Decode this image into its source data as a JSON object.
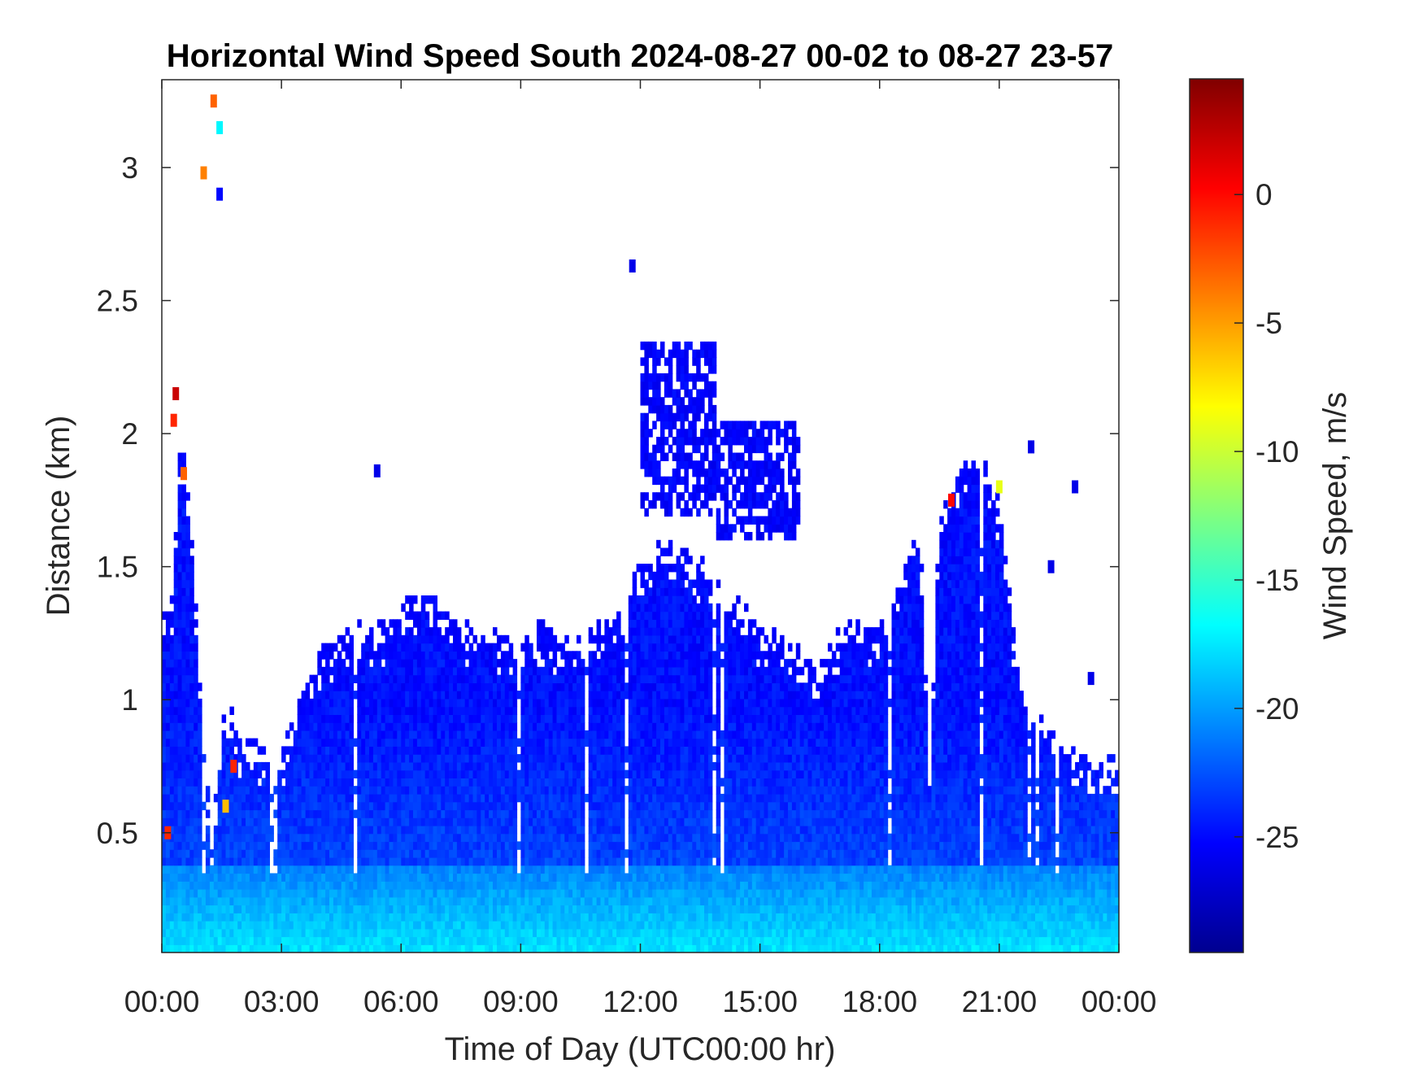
{
  "chart_data": {
    "type": "heatmap",
    "title": "Horizontal Wind Speed South 2024-08-27 00-02 to 08-27 23-57",
    "xlabel": "Time of Day (UTC00:00 hr)",
    "ylabel": "Distance (km)",
    "colorbar_label": "Wind Speed, m/s",
    "x_range_hours": [
      0,
      24
    ],
    "x_ticks": [
      0,
      3,
      6,
      9,
      12,
      15,
      18,
      21,
      24
    ],
    "x_tick_labels": [
      "00:00",
      "03:00",
      "06:00",
      "09:00",
      "12:00",
      "15:00",
      "18:00",
      "21:00",
      "00:00"
    ],
    "y_range_km": [
      0.05,
      3.33
    ],
    "y_ticks": [
      0.5,
      1,
      1.5,
      2,
      2.5,
      3
    ],
    "y_tick_labels": [
      "0.5",
      "1",
      "1.5",
      "2",
      "2.5",
      "3"
    ],
    "colorbar_range": [
      -29.5,
      4.5
    ],
    "colorbar_ticks": [
      0,
      -5,
      -10,
      -15,
      -20,
      -25
    ],
    "colorbar_tick_labels": [
      "0",
      "-5",
      "-10",
      "-15",
      "-20",
      "-25"
    ],
    "colormap": "jet",
    "grid": false,
    "signal_top_km": {
      "hours": [
        0,
        0.25,
        0.5,
        0.75,
        1.0,
        1.25,
        1.5,
        1.75,
        2.0,
        2.5,
        3.0,
        3.5,
        4.0,
        4.5,
        5.0,
        5.5,
        6.0,
        6.5,
        7.0,
        7.5,
        8.0,
        8.5,
        9.0,
        9.5,
        10.0,
        10.5,
        11.0,
        11.5,
        12.0,
        12.5,
        13.0,
        13.5,
        14.0,
        14.5,
        15.0,
        15.5,
        16.0,
        16.5,
        17.0,
        17.5,
        18.0,
        18.5,
        19.0,
        19.25,
        19.5,
        20.0,
        20.5,
        21.0,
        21.5,
        22.0,
        22.5,
        23.0,
        23.5,
        24.0
      ],
      "km": [
        1.32,
        1.4,
        2.05,
        1.6,
        1.0,
        0.5,
        0.95,
        1.0,
        0.85,
        0.85,
        0.8,
        1.05,
        1.2,
        1.25,
        1.3,
        1.3,
        1.35,
        1.45,
        1.4,
        1.3,
        1.3,
        1.25,
        1.25,
        1.3,
        1.25,
        1.25,
        1.3,
        1.35,
        1.55,
        1.6,
        1.6,
        1.55,
        1.45,
        1.4,
        1.3,
        1.25,
        1.2,
        1.15,
        1.28,
        1.3,
        1.3,
        1.45,
        1.7,
        0.8,
        1.7,
        1.9,
        1.95,
        1.75,
        1.1,
        0.95,
        0.85,
        0.8,
        0.78,
        0.8
      ]
    },
    "upper_clouds": [
      {
        "hours": [
          12.0,
          13.9
        ],
        "km": [
          1.7,
          2.35
        ],
        "speed": -25
      },
      {
        "hours": [
          13.9,
          16.0
        ],
        "km": [
          1.6,
          2.05
        ],
        "speed": -25
      }
    ],
    "near_surface_layer": {
      "top_km": 0.38,
      "speed": -17
    },
    "sparse_returns": [
      {
        "hour": 1.3,
        "km": 3.25,
        "speed": -3
      },
      {
        "hour": 1.45,
        "km": 3.15,
        "speed": -17
      },
      {
        "hour": 1.05,
        "km": 2.98,
        "speed": -4
      },
      {
        "hour": 1.45,
        "km": 2.9,
        "speed": -25
      },
      {
        "hour": 11.8,
        "km": 2.63,
        "speed": -26
      },
      {
        "hour": 5.4,
        "km": 1.86,
        "speed": -26
      },
      {
        "hour": 21.8,
        "km": 1.95,
        "speed": -26
      },
      {
        "hour": 22.9,
        "km": 1.8,
        "speed": -26
      },
      {
        "hour": 22.3,
        "km": 1.5,
        "speed": -26
      },
      {
        "hour": 23.3,
        "km": 1.08,
        "speed": -26
      }
    ],
    "strong_anomalies": [
      {
        "hour": 0.35,
        "km": 2.15,
        "speed": 2
      },
      {
        "hour": 0.3,
        "km": 2.05,
        "speed": -1
      },
      {
        "hour": 0.55,
        "km": 1.85,
        "speed": -3
      },
      {
        "hour": 0.15,
        "km": 0.5,
        "speed": -1
      },
      {
        "hour": 1.8,
        "km": 0.75,
        "speed": -1
      },
      {
        "hour": 1.6,
        "km": 0.6,
        "speed": -6
      },
      {
        "hour": 19.8,
        "km": 1.75,
        "speed": 0
      },
      {
        "hour": 21.0,
        "km": 1.8,
        "speed": -9
      }
    ]
  }
}
